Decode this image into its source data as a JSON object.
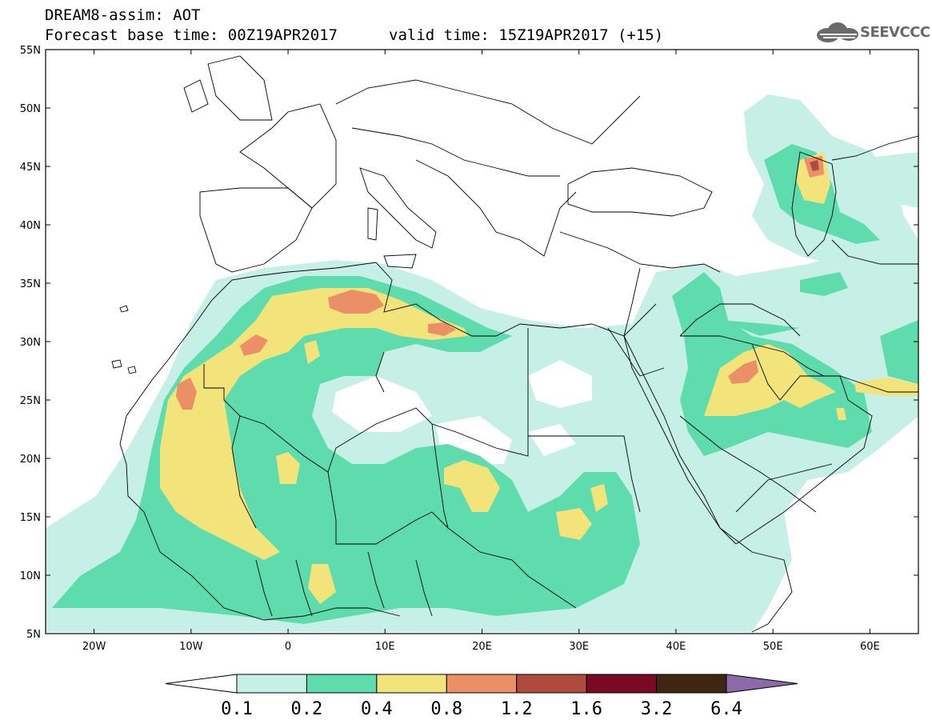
{
  "header": {
    "title_line1": "DREAM8-assim: AOT",
    "title_line2": "Forecast base time: 00Z19APR2017",
    "valid_time": "valid time: 15Z19APR2017 (+15)"
  },
  "logo": {
    "text": "SEEVCCC",
    "icon": "cloud-logo-icon",
    "color": "#6a6a6a"
  },
  "map": {
    "projection": "lat-lon",
    "lon_range": [
      -25,
      65
    ],
    "lat_range": [
      5,
      55
    ],
    "lat_ticks": [
      "55N",
      "50N",
      "45N",
      "40N",
      "35N",
      "30N",
      "25N",
      "20N",
      "15N",
      "10N",
      "5N"
    ],
    "lon_ticks": [
      "20W",
      "10W",
      "0",
      "10E",
      "20E",
      "30E",
      "40E",
      "50E",
      "60E"
    ],
    "lat_values": [
      55,
      50,
      45,
      40,
      35,
      30,
      25,
      20,
      15,
      10,
      5
    ],
    "lon_values": [
      -20,
      -10,
      0,
      10,
      20,
      30,
      40,
      50,
      60
    ]
  },
  "colorbar": {
    "labels": [
      "0.1",
      "0.2",
      "0.4",
      "0.8",
      "1.2",
      "1.6",
      "3.2",
      "6.4"
    ],
    "colors": [
      "#ffffff",
      "#c6f0e6",
      "#5edcad",
      "#f3e37b",
      "#eb8f67",
      "#ae4b3c",
      "#7a0a24",
      "#3f2613",
      "#8c6aa8"
    ]
  },
  "legend_colors": {
    "c01": "#c6f0e6",
    "c02": "#5edcad",
    "c04": "#f3e37b",
    "c08": "#eb8f67",
    "c12": "#ae4b3c",
    "c16": "#7a0a24"
  }
}
